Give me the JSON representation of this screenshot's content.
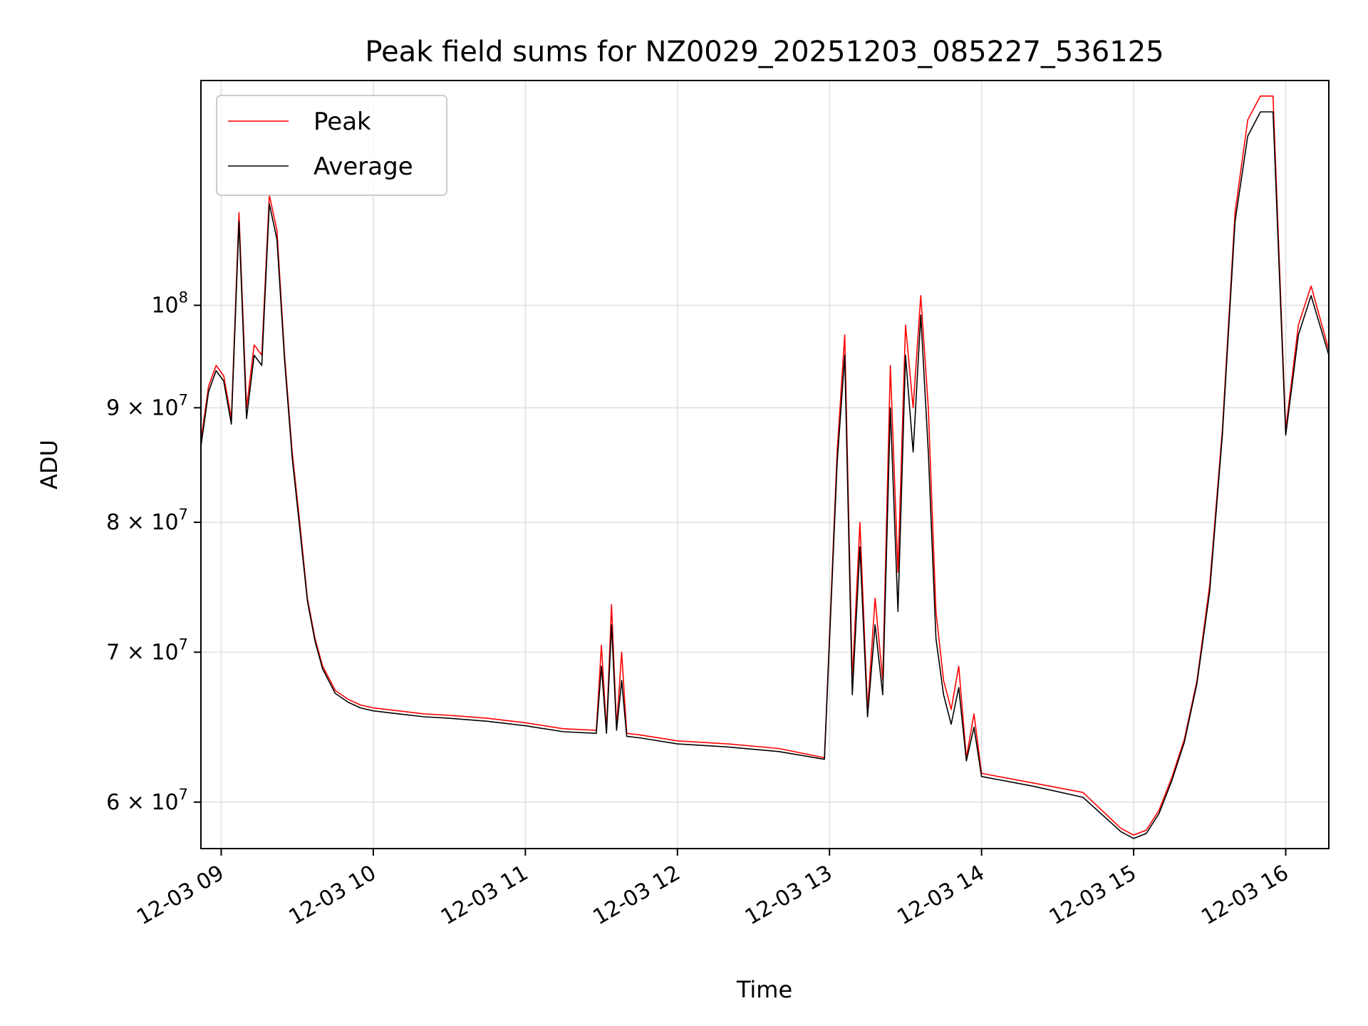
{
  "chart_data": {
    "type": "line",
    "title": "Peak field sums for NZ0029_20251203_085227_536125",
    "xlabel": "Time",
    "ylabel": "ADU",
    "xlim": [
      "2025-12-03 08:52",
      "2025-12-03 16:17"
    ],
    "ylim": [
      57200000,
      126000000
    ],
    "yscale": "log",
    "grid": true,
    "legend_position": "top-left",
    "x_ticks": [
      {
        "x": "2025-12-03 09:00",
        "label": "12-03 09"
      },
      {
        "x": "2025-12-03 10:00",
        "label": "12-03 10"
      },
      {
        "x": "2025-12-03 11:00",
        "label": "12-03 11"
      },
      {
        "x": "2025-12-03 12:00",
        "label": "12-03 12"
      },
      {
        "x": "2025-12-03 13:00",
        "label": "12-03 13"
      },
      {
        "x": "2025-12-03 14:00",
        "label": "12-03 14"
      },
      {
        "x": "2025-12-03 15:00",
        "label": "12-03 15"
      },
      {
        "x": "2025-12-03 16:00",
        "label": "12-03 16"
      }
    ],
    "y_ticks": [
      {
        "value": 60000000,
        "mantissa": "6",
        "exponent": "7"
      },
      {
        "value": 70000000,
        "mantissa": "7",
        "exponent": "7"
      },
      {
        "value": 80000000,
        "mantissa": "8",
        "exponent": "7"
      },
      {
        "value": 90000000,
        "mantissa": "9",
        "exponent": "7"
      },
      {
        "value": 100000000,
        "mantissa": "",
        "exponent": "8"
      }
    ],
    "series": [
      {
        "name": "Peak",
        "color": "#ff0000",
        "x": [
          "2025-12-03 08:52",
          "2025-12-03 08:55",
          "2025-12-03 08:58",
          "2025-12-03 09:01",
          "2025-12-03 09:04",
          "2025-12-03 09:07",
          "2025-12-03 09:10",
          "2025-12-03 09:13",
          "2025-12-03 09:16",
          "2025-12-03 09:19",
          "2025-12-03 09:22",
          "2025-12-03 09:25",
          "2025-12-03 09:28",
          "2025-12-03 09:31",
          "2025-12-03 09:34",
          "2025-12-03 09:37",
          "2025-12-03 09:40",
          "2025-12-03 09:45",
          "2025-12-03 09:50",
          "2025-12-03 09:55",
          "2025-12-03 10:00",
          "2025-12-03 10:10",
          "2025-12-03 10:20",
          "2025-12-03 10:30",
          "2025-12-03 10:45",
          "2025-12-03 11:00",
          "2025-12-03 11:15",
          "2025-12-03 11:28",
          "2025-12-03 11:30",
          "2025-12-03 11:32",
          "2025-12-03 11:34",
          "2025-12-03 11:36",
          "2025-12-03 11:38",
          "2025-12-03 11:40",
          "2025-12-03 11:45",
          "2025-12-03 12:00",
          "2025-12-03 12:20",
          "2025-12-03 12:40",
          "2025-12-03 12:58",
          "2025-12-03 13:03",
          "2025-12-03 13:06",
          "2025-12-03 13:09",
          "2025-12-03 13:12",
          "2025-12-03 13:15",
          "2025-12-03 13:18",
          "2025-12-03 13:21",
          "2025-12-03 13:24",
          "2025-12-03 13:27",
          "2025-12-03 13:30",
          "2025-12-03 13:33",
          "2025-12-03 13:36",
          "2025-12-03 13:39",
          "2025-12-03 13:42",
          "2025-12-03 13:45",
          "2025-12-03 13:48",
          "2025-12-03 13:51",
          "2025-12-03 13:54",
          "2025-12-03 13:57",
          "2025-12-03 14:00",
          "2025-12-03 14:20",
          "2025-12-03 14:40",
          "2025-12-03 14:55",
          "2025-12-03 15:00",
          "2025-12-03 15:05",
          "2025-12-03 15:10",
          "2025-12-03 15:15",
          "2025-12-03 15:20",
          "2025-12-03 15:25",
          "2025-12-03 15:30",
          "2025-12-03 15:35",
          "2025-12-03 15:40",
          "2025-12-03 15:45",
          "2025-12-03 15:50",
          "2025-12-03 15:55",
          "2025-12-03 16:00",
          "2025-12-03 16:05",
          "2025-12-03 16:10",
          "2025-12-03 16:17"
        ],
        "y": [
          87000000,
          92000000,
          94000000,
          93000000,
          89000000,
          110000000,
          90000000,
          96000000,
          95000000,
          112000000,
          108000000,
          95000000,
          86000000,
          80000000,
          74000000,
          71000000,
          69000000,
          67300000,
          66700000,
          66300000,
          66100000,
          65900000,
          65700000,
          65600000,
          65400000,
          65100000,
          64700000,
          64600000,
          70500000,
          64600000,
          73500000,
          64800000,
          70000000,
          64400000,
          64300000,
          63900000,
          63700000,
          63400000,
          62800000,
          86000000,
          97000000,
          68000000,
          80000000,
          66000000,
          74000000,
          68000000,
          94000000,
          76000000,
          98000000,
          90000000,
          101000000,
          90000000,
          73000000,
          68000000,
          66000000,
          69000000,
          62800000,
          65700000,
          61800000,
          61200000,
          60600000,
          58400000,
          58000000,
          58300000,
          59500000,
          61500000,
          64000000,
          68000000,
          75000000,
          88000000,
          110000000,
          121000000,
          124000000,
          124000000,
          88000000,
          98000000,
          102000000,
          95500000
        ]
      },
      {
        "name": "Average",
        "color": "#000000",
        "x": [
          "2025-12-03 08:52",
          "2025-12-03 08:55",
          "2025-12-03 08:58",
          "2025-12-03 09:01",
          "2025-12-03 09:04",
          "2025-12-03 09:07",
          "2025-12-03 09:10",
          "2025-12-03 09:13",
          "2025-12-03 09:16",
          "2025-12-03 09:19",
          "2025-12-03 09:22",
          "2025-12-03 09:25",
          "2025-12-03 09:28",
          "2025-12-03 09:31",
          "2025-12-03 09:34",
          "2025-12-03 09:37",
          "2025-12-03 09:40",
          "2025-12-03 09:45",
          "2025-12-03 09:50",
          "2025-12-03 09:55",
          "2025-12-03 10:00",
          "2025-12-03 10:10",
          "2025-12-03 10:20",
          "2025-12-03 10:30",
          "2025-12-03 10:45",
          "2025-12-03 11:00",
          "2025-12-03 11:15",
          "2025-12-03 11:28",
          "2025-12-03 11:30",
          "2025-12-03 11:32",
          "2025-12-03 11:34",
          "2025-12-03 11:36",
          "2025-12-03 11:38",
          "2025-12-03 11:40",
          "2025-12-03 11:45",
          "2025-12-03 12:00",
          "2025-12-03 12:20",
          "2025-12-03 12:40",
          "2025-12-03 12:58",
          "2025-12-03 13:03",
          "2025-12-03 13:06",
          "2025-12-03 13:09",
          "2025-12-03 13:12",
          "2025-12-03 13:15",
          "2025-12-03 13:18",
          "2025-12-03 13:21",
          "2025-12-03 13:24",
          "2025-12-03 13:27",
          "2025-12-03 13:30",
          "2025-12-03 13:33",
          "2025-12-03 13:36",
          "2025-12-03 13:39",
          "2025-12-03 13:42",
          "2025-12-03 13:45",
          "2025-12-03 13:48",
          "2025-12-03 13:51",
          "2025-12-03 13:54",
          "2025-12-03 13:57",
          "2025-12-03 14:00",
          "2025-12-03 14:20",
          "2025-12-03 14:40",
          "2025-12-03 14:55",
          "2025-12-03 15:00",
          "2025-12-03 15:05",
          "2025-12-03 15:10",
          "2025-12-03 15:15",
          "2025-12-03 15:20",
          "2025-12-03 15:25",
          "2025-12-03 15:30",
          "2025-12-03 15:35",
          "2025-12-03 15:40",
          "2025-12-03 15:45",
          "2025-12-03 15:50",
          "2025-12-03 15:55",
          "2025-12-03 16:00",
          "2025-12-03 16:05",
          "2025-12-03 16:10",
          "2025-12-03 16:17"
        ],
        "y": [
          86500000,
          91500000,
          93500000,
          92500000,
          88500000,
          109000000,
          89000000,
          95000000,
          94000000,
          111000000,
          107000000,
          94500000,
          85500000,
          79500000,
          73800000,
          70800000,
          68800000,
          67100000,
          66500000,
          66100000,
          65900000,
          65700000,
          65500000,
          65400000,
          65200000,
          64900000,
          64500000,
          64400000,
          69000000,
          64400000,
          72000000,
          64600000,
          68000000,
          64200000,
          64100000,
          63700000,
          63500000,
          63200000,
          62700000,
          85000000,
          95000000,
          67000000,
          78000000,
          65500000,
          72000000,
          67000000,
          90000000,
          73000000,
          95000000,
          86000000,
          99000000,
          86000000,
          71000000,
          67000000,
          65000000,
          67500000,
          62600000,
          64800000,
          61600000,
          61000000,
          60300000,
          58200000,
          57800000,
          58100000,
          59300000,
          61300000,
          63800000,
          67800000,
          74500000,
          87500000,
          109000000,
          119000000,
          122000000,
          122000000,
          87500000,
          97000000,
          101000000,
          95000000
        ]
      }
    ]
  }
}
